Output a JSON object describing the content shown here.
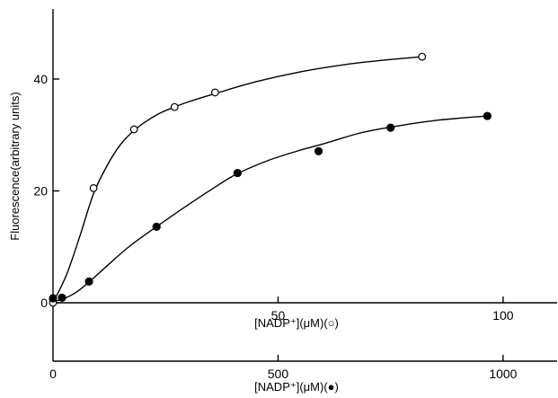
{
  "chart_data": {
    "type": "scatter",
    "title": "",
    "ylabel": "Fluorescence(arbitrary units)",
    "ylim": [
      -10,
      52
    ],
    "yticks": [
      0,
      20,
      40
    ],
    "ytick_labels": [
      "0",
      "20",
      "40"
    ],
    "x_axes": [
      {
        "label": "[NADP⁺](μM)(○)",
        "xlim": [
          0,
          112
        ],
        "ticks": [
          50,
          100
        ],
        "tick_labels": [
          "50",
          "100"
        ]
      },
      {
        "label": "[NADP⁺](μM)(●)",
        "xlim": [
          0,
          1120
        ],
        "ticks": [
          0,
          500,
          1000
        ],
        "tick_labels": [
          "0",
          "500",
          "1000"
        ]
      }
    ],
    "series": [
      {
        "marker": "open-circle",
        "x_axis": 0,
        "x": [
          0,
          9,
          18,
          27,
          36,
          82
        ],
        "y": [
          0,
          20.5,
          31,
          35,
          37.6,
          44
        ],
        "curve": [
          [
            0,
            0
          ],
          [
            3,
            5
          ],
          [
            6,
            12
          ],
          [
            9,
            19.5
          ],
          [
            12,
            24.5
          ],
          [
            15,
            28.3
          ],
          [
            18,
            30.8
          ],
          [
            21,
            32.6
          ],
          [
            24,
            34
          ],
          [
            27,
            35
          ],
          [
            30,
            35.9
          ],
          [
            36,
            37.4
          ],
          [
            45,
            39.5
          ],
          [
            55,
            41.3
          ],
          [
            65,
            42.6
          ],
          [
            75,
            43.5
          ],
          [
            82,
            44
          ]
        ]
      },
      {
        "marker": "filled-circle",
        "x_axis": 1,
        "x": [
          0,
          20,
          80,
          230,
          410,
          590,
          750,
          965
        ],
        "y": [
          0.8,
          0.9,
          3.8,
          13.6,
          23.2,
          27.1,
          31.3,
          33.4
        ],
        "curve": [
          [
            0,
            0.3
          ],
          [
            20,
            0.6
          ],
          [
            50,
            1.8
          ],
          [
            80,
            3.7
          ],
          [
            120,
            6.6
          ],
          [
            170,
            10.1
          ],
          [
            230,
            13.6
          ],
          [
            300,
            17.5
          ],
          [
            370,
            21.2
          ],
          [
            410,
            23.1
          ],
          [
            480,
            25.5
          ],
          [
            550,
            27.3
          ],
          [
            600,
            28.4
          ],
          [
            680,
            30.3
          ],
          [
            750,
            31.4
          ],
          [
            850,
            32.6
          ],
          [
            965,
            33.4
          ]
        ]
      }
    ]
  }
}
